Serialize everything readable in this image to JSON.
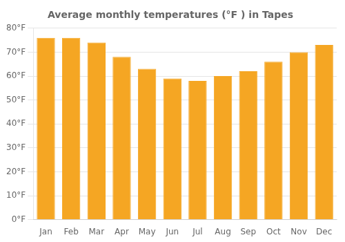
{
  "chart_data": {
    "type": "bar",
    "title": "Average monthly temperatures (°F ) in Tapes",
    "categories": [
      "Jan",
      "Feb",
      "Mar",
      "Apr",
      "May",
      "Jun",
      "Jul",
      "Aug",
      "Sep",
      "Oct",
      "Nov",
      "Dec"
    ],
    "values": [
      76,
      76,
      74,
      68,
      63,
      59,
      58,
      60,
      62,
      66,
      70,
      73
    ],
    "color": "#F5A623",
    "ylim": [
      0,
      80
    ],
    "yticks": [
      {
        "value": 0,
        "label": "0°F"
      },
      {
        "value": 10,
        "label": "10°F"
      },
      {
        "value": 20,
        "label": "20°F"
      },
      {
        "value": 30,
        "label": "30°F"
      },
      {
        "value": 40,
        "label": "40°F"
      },
      {
        "value": 50,
        "label": "50°F"
      },
      {
        "value": 60,
        "label": "60°F"
      },
      {
        "value": 70,
        "label": "70°F"
      },
      {
        "value": 80,
        "label": "80°F"
      }
    ],
    "grid": true
  }
}
